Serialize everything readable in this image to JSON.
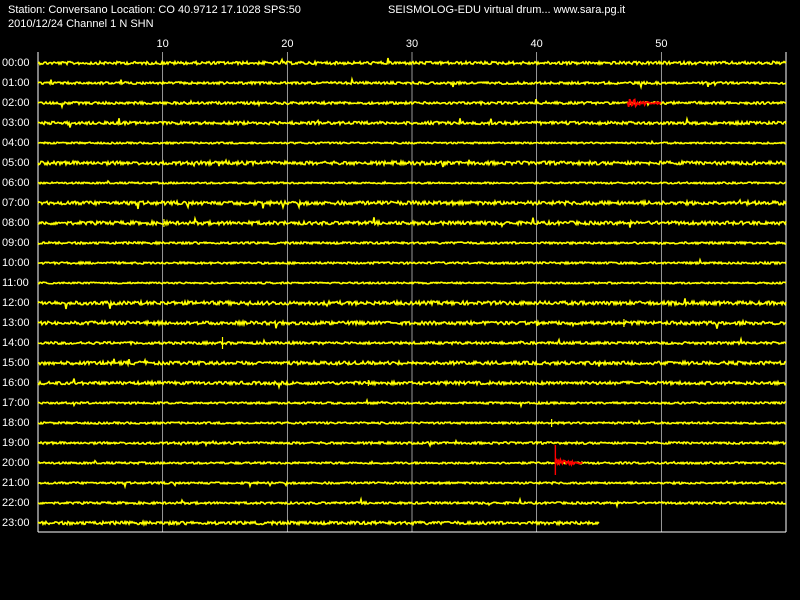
{
  "header": {
    "station_line": "Station: Conversano Location: CO 40.9712 17.1028 SPS:50",
    "date_line": "2010/12/24  Channel 1 N SHN",
    "program_line": "SEISMOLOG-EDU virtual drum... www.sara.pg.it"
  },
  "minute_axis": {
    "ticks": [
      "10",
      "20",
      "30",
      "40",
      "50"
    ],
    "max_minutes": 60
  },
  "hour_labels": [
    "00:00",
    "01:00",
    "02:00",
    "03:00",
    "04:00",
    "05:00",
    "06:00",
    "07:00",
    "08:00",
    "09:00",
    "10:00",
    "11:00",
    "12:00",
    "13:00",
    "14:00",
    "15:00",
    "16:00",
    "17:00",
    "18:00",
    "19:00",
    "20:00",
    "21:00",
    "22:00",
    "23:00"
  ],
  "last_trace_end_minute": 45,
  "events": [
    {
      "hour": 2,
      "start_minute": 47.3,
      "end_minute": 50.0
    },
    {
      "hour": 20,
      "start_minute": 41.5,
      "end_minute": 43.7
    }
  ],
  "colors": {
    "background": "#000000",
    "trace": "#ffff00",
    "event": "#ff0000",
    "grid": "#ffffff",
    "text": "#ffffff"
  }
}
